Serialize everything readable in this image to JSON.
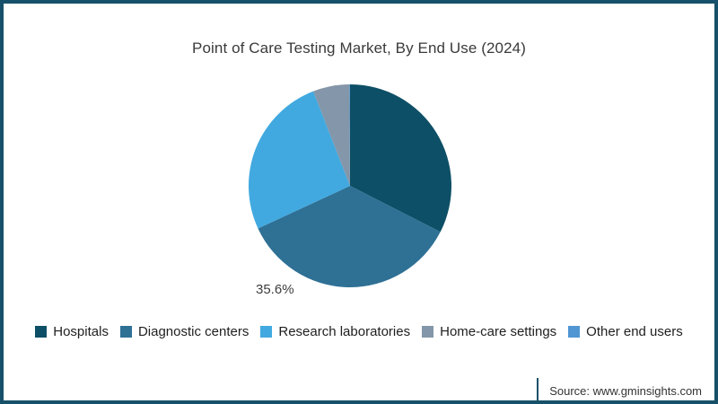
{
  "title": "Point of Care Testing Market, By End Use (2024)",
  "chart_data": {
    "type": "pie",
    "categories": [
      "Hospitals",
      "Diagnostic centers",
      "Research laboratories",
      "Home-care settings",
      "Other end users"
    ],
    "values": [
      32.5,
      35.6,
      26.0,
      5.8,
      0.1
    ],
    "colors": [
      "#0d4f66",
      "#2f7095",
      "#41a9e0",
      "#8496a9",
      "#4f96d2"
    ],
    "start_angle": "12-o-clock",
    "direction": "clockwise",
    "data_label": {
      "text": "35.6%",
      "category": "Diagnostic centers"
    },
    "legend_position": "bottom",
    "grid": "off"
  },
  "legend": {
    "items": [
      {
        "label": "Hospitals",
        "color": "#0d4f66"
      },
      {
        "label": "Diagnostic centers",
        "color": "#2f7095"
      },
      {
        "label": "Research laboratories",
        "color": "#41a9e0"
      },
      {
        "label": "Home-care settings",
        "color": "#8496a9"
      },
      {
        "label": "Other end users",
        "color": "#4f96d2"
      }
    ]
  },
  "source": {
    "text": "Source: www.gminsights.com"
  },
  "frame": {
    "border_color": "#175169"
  }
}
